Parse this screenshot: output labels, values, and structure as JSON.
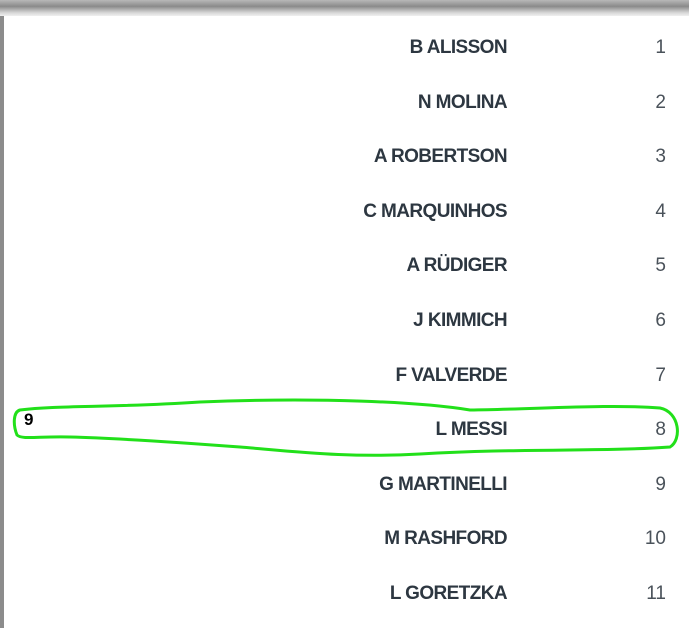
{
  "players": [
    {
      "name": "B ALISSON",
      "number": "1"
    },
    {
      "name": "N MOLINA",
      "number": "2"
    },
    {
      "name": "A ROBERTSON",
      "number": "3"
    },
    {
      "name": "C MARQUINHOS",
      "number": "4"
    },
    {
      "name": "A RÜDIGER",
      "number": "5"
    },
    {
      "name": "J KIMMICH",
      "number": "6"
    },
    {
      "name": "F VALVERDE",
      "number": "7"
    },
    {
      "name": "L MESSI",
      "number": "8"
    },
    {
      "name": "G MARTINELLI",
      "number": "9"
    },
    {
      "name": "M RASHFORD",
      "number": "10"
    },
    {
      "name": "L GORETZKA",
      "number": "11"
    }
  ],
  "annotation": {
    "label": "9",
    "color": "#22e01a",
    "highlighted_player": "L MESSI"
  }
}
